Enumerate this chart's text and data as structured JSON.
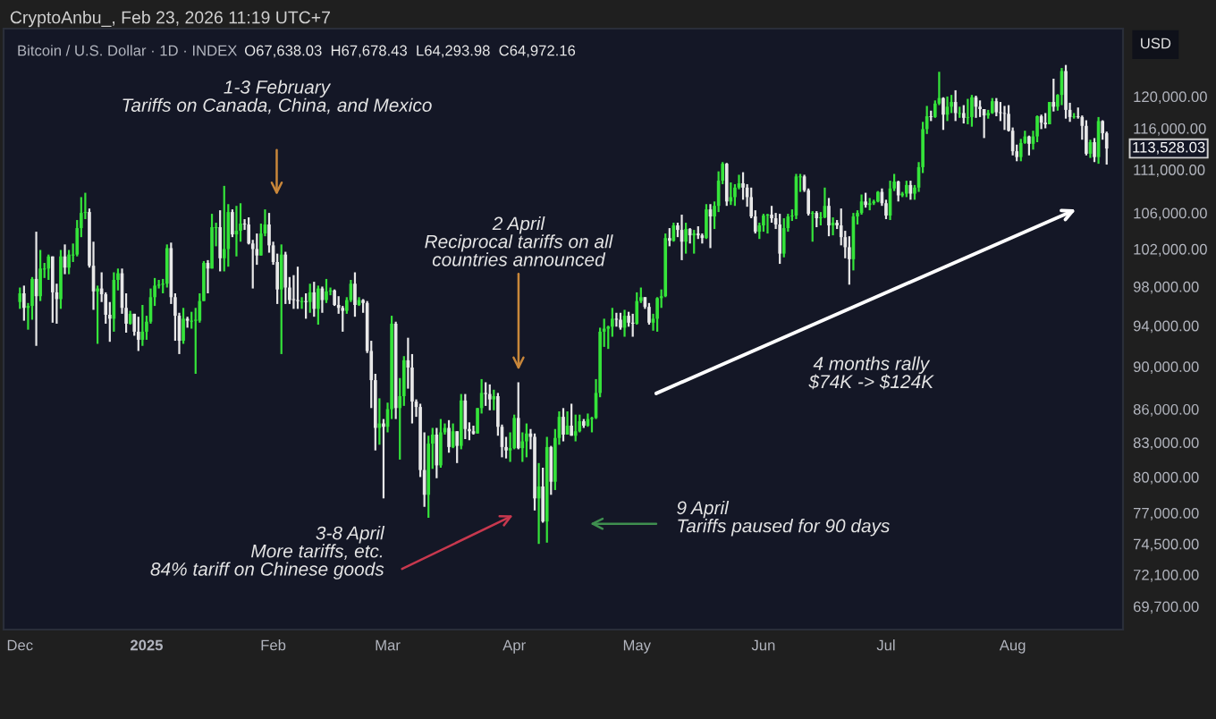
{
  "chart_data": {
    "type": "candlestick",
    "title": "Bitcoin / U.S. Dollar · 1D · INDEX",
    "subtitle": "O67,638.03  H67,678.43  L64,293.98  C64,972.16",
    "log": "y",
    "ylim": [
      68000,
      129000
    ],
    "yticks": [
      {
        "value": 69700,
        "label": "69,700.00"
      },
      {
        "value": 72100,
        "label": "72,100.00"
      },
      {
        "value": 74500,
        "label": "74,500.00"
      },
      {
        "value": 77000,
        "label": "77,000.00"
      },
      {
        "value": 80000,
        "label": "80,000.00"
      },
      {
        "value": 83000,
        "label": "83,000.00"
      },
      {
        "value": 86000,
        "label": "86,000.00"
      },
      {
        "value": 90000,
        "label": "90,000.00"
      },
      {
        "value": 94000,
        "label": "94,000.00"
      },
      {
        "value": 98000,
        "label": "98,000.00"
      },
      {
        "value": 102000,
        "label": "102,000.00"
      },
      {
        "value": 106000,
        "label": "106,000.00"
      },
      {
        "value": 111000,
        "label": "111,000.00"
      },
      {
        "value": 116000,
        "label": "116,000.00"
      },
      {
        "value": 120000,
        "label": "120,000.00"
      }
    ],
    "xlim": [
      "2024-11-27",
      "2025-08-28"
    ],
    "xticks": [
      {
        "value": "2024-12-01",
        "label": "Dec"
      },
      {
        "value": "2025-01-01",
        "label": "2025"
      },
      {
        "value": "2025-02-01",
        "label": "Feb"
      },
      {
        "value": "2025-03-01",
        "label": "Mar"
      },
      {
        "value": "2025-04-01",
        "label": "Apr"
      },
      {
        "value": "2025-05-01",
        "label": "May"
      },
      {
        "value": "2025-06-01",
        "label": "Jun"
      },
      {
        "value": "2025-07-01",
        "label": "Jul"
      },
      {
        "value": "2025-08-01",
        "label": "Aug"
      }
    ],
    "grid": false,
    "annotations": [
      "1-3 February\nTariffs on Canada, China, and Mexico",
      "2 April\nReciprocal tariffs on all\ncountries announced",
      "3-8 April\nMore tariffs, etc.\n84% tariff on Chinese goods",
      "9 April\nTariffs paused for 90 days",
      "4 months rally\n$74K -> $124K",
      "113,528.03",
      "USD",
      "CryptoAnbu_, Feb 23, 2026 11:19 UTC+7"
    ],
    "x": [
      "2024-12-01",
      "2024-12-02",
      "2024-12-03",
      "2024-12-04",
      "2024-12-05",
      "2024-12-06",
      "2024-12-07",
      "2024-12-08",
      "2024-12-09",
      "2024-12-10",
      "2024-12-11",
      "2024-12-12",
      "2024-12-13",
      "2024-12-14",
      "2024-12-15",
      "2024-12-16",
      "2024-12-17",
      "2024-12-18",
      "2024-12-19",
      "2024-12-20",
      "2024-12-21",
      "2024-12-22",
      "2024-12-23",
      "2024-12-24",
      "2024-12-25",
      "2024-12-26",
      "2024-12-27",
      "2024-12-28",
      "2024-12-29",
      "2024-12-30",
      "2024-12-31",
      "2025-01-01",
      "2025-01-02",
      "2025-01-03",
      "2025-01-04",
      "2025-01-05",
      "2025-01-06",
      "2025-01-07",
      "2025-01-08",
      "2025-01-09",
      "2025-01-10",
      "2025-01-11",
      "2025-01-12",
      "2025-01-13",
      "2025-01-14",
      "2025-01-15",
      "2025-01-16",
      "2025-01-17",
      "2025-01-18",
      "2025-01-19",
      "2025-01-20",
      "2025-01-21",
      "2025-01-22",
      "2025-01-23",
      "2025-01-24",
      "2025-01-25",
      "2025-01-26",
      "2025-01-27",
      "2025-01-28",
      "2025-01-29",
      "2025-01-30",
      "2025-01-31",
      "2025-02-01",
      "2025-02-02",
      "2025-02-03",
      "2025-02-04",
      "2025-02-05",
      "2025-02-06",
      "2025-02-07",
      "2025-02-08",
      "2025-02-09",
      "2025-02-10",
      "2025-02-11",
      "2025-02-12",
      "2025-02-13",
      "2025-02-14",
      "2025-02-15",
      "2025-02-16",
      "2025-02-17",
      "2025-02-18",
      "2025-02-19",
      "2025-02-20",
      "2025-02-21",
      "2025-02-22",
      "2025-02-23",
      "2025-02-24",
      "2025-02-25",
      "2025-02-26",
      "2025-02-27",
      "2025-02-28",
      "2025-03-01",
      "2025-03-02",
      "2025-03-03",
      "2025-03-04",
      "2025-03-05",
      "2025-03-06",
      "2025-03-07",
      "2025-03-08",
      "2025-03-09",
      "2025-03-10",
      "2025-03-11",
      "2025-03-12",
      "2025-03-13",
      "2025-03-14",
      "2025-03-15",
      "2025-03-16",
      "2025-03-17",
      "2025-03-18",
      "2025-03-19",
      "2025-03-20",
      "2025-03-21",
      "2025-03-22",
      "2025-03-23",
      "2025-03-24",
      "2025-03-25",
      "2025-03-26",
      "2025-03-27",
      "2025-03-28",
      "2025-03-29",
      "2025-03-30",
      "2025-03-31",
      "2025-04-01",
      "2025-04-02",
      "2025-04-03",
      "2025-04-04",
      "2025-04-05",
      "2025-04-06",
      "2025-04-07",
      "2025-04-08",
      "2025-04-09",
      "2025-04-10",
      "2025-04-11",
      "2025-04-12",
      "2025-04-13",
      "2025-04-14",
      "2025-04-15",
      "2025-04-16",
      "2025-04-17",
      "2025-04-18",
      "2025-04-19",
      "2025-04-20",
      "2025-04-21",
      "2025-04-22",
      "2025-04-23",
      "2025-04-24",
      "2025-04-25",
      "2025-04-26",
      "2025-04-27",
      "2025-04-28",
      "2025-04-29",
      "2025-04-30",
      "2025-05-01",
      "2025-05-02",
      "2025-05-03",
      "2025-05-04",
      "2025-05-05",
      "2025-05-06",
      "2025-05-07",
      "2025-05-08",
      "2025-05-09",
      "2025-05-10",
      "2025-05-11",
      "2025-05-12",
      "2025-05-13",
      "2025-05-14",
      "2025-05-15",
      "2025-05-16",
      "2025-05-17",
      "2025-05-18",
      "2025-05-19",
      "2025-05-20",
      "2025-05-21",
      "2025-05-22",
      "2025-05-23",
      "2025-05-24",
      "2025-05-25",
      "2025-05-26",
      "2025-05-27",
      "2025-05-28",
      "2025-05-29",
      "2025-05-30",
      "2025-05-31",
      "2025-06-01",
      "2025-06-02",
      "2025-06-03",
      "2025-06-04",
      "2025-06-05",
      "2025-06-06",
      "2025-06-07",
      "2025-06-08",
      "2025-06-09",
      "2025-06-10",
      "2025-06-11",
      "2025-06-12",
      "2025-06-13",
      "2025-06-14",
      "2025-06-15",
      "2025-06-16",
      "2025-06-17",
      "2025-06-18",
      "2025-06-19",
      "2025-06-20",
      "2025-06-21",
      "2025-06-22",
      "2025-06-23",
      "2025-06-24",
      "2025-06-25",
      "2025-06-26",
      "2025-06-27",
      "2025-06-28",
      "2025-06-29",
      "2025-06-30",
      "2025-07-01",
      "2025-07-02",
      "2025-07-03",
      "2025-07-04",
      "2025-07-05",
      "2025-07-06",
      "2025-07-07",
      "2025-07-08",
      "2025-07-09",
      "2025-07-10",
      "2025-07-11",
      "2025-07-12",
      "2025-07-13",
      "2025-07-14",
      "2025-07-15",
      "2025-07-16",
      "2025-07-17",
      "2025-07-18",
      "2025-07-19",
      "2025-07-20",
      "2025-07-21",
      "2025-07-22",
      "2025-07-23",
      "2025-07-24",
      "2025-07-25",
      "2025-07-26",
      "2025-07-27",
      "2025-07-28",
      "2025-07-29",
      "2025-07-30",
      "2025-07-31",
      "2025-08-01",
      "2025-08-02",
      "2025-08-03",
      "2025-08-04",
      "2025-08-05",
      "2025-08-06",
      "2025-08-07",
      "2025-08-08",
      "2025-08-09",
      "2025-08-10",
      "2025-08-11",
      "2025-08-12",
      "2025-08-13",
      "2025-08-14",
      "2025-08-15",
      "2025-08-16",
      "2025-08-17",
      "2025-08-18",
      "2025-08-19",
      "2025-08-20",
      "2025-08-21",
      "2025-08-22",
      "2025-08-23",
      "2025-08-24"
    ],
    "ohlc": [
      [
        96400,
        97900,
        95700,
        97300
      ],
      [
        97300,
        98100,
        94500,
        95800
      ],
      [
        95800,
        96300,
        93600,
        96000
      ],
      [
        96000,
        99000,
        94600,
        98800
      ],
      [
        98800,
        103900,
        92000,
        97000
      ],
      [
        97000,
        101900,
        96500,
        99900
      ],
      [
        99800,
        100500,
        98900,
        99900
      ],
      [
        99900,
        101400,
        98700,
        101200
      ],
      [
        101200,
        101200,
        94300,
        97400
      ],
      [
        97400,
        98300,
        94200,
        96700
      ],
      [
        96700,
        101900,
        95700,
        101200
      ],
      [
        101200,
        102500,
        99300,
        100000
      ],
      [
        100000,
        101900,
        99300,
        101400
      ],
      [
        101300,
        102600,
        100600,
        101400
      ],
      [
        101400,
        105200,
        101200,
        104300
      ],
      [
        104300,
        107800,
        103300,
        106000
      ],
      [
        106000,
        108300,
        105300,
        106100
      ],
      [
        106100,
        106500,
        100000,
        100200
      ],
      [
        100200,
        102800,
        95600,
        97500
      ],
      [
        97500,
        98100,
        92200,
        97800
      ],
      [
        97800,
        99500,
        96400,
        97200
      ],
      [
        97200,
        97400,
        94200,
        95100
      ],
      [
        95100,
        96400,
        92400,
        94700
      ],
      [
        94700,
        99500,
        93400,
        98700
      ],
      [
        98700,
        99900,
        97600,
        99400
      ],
      [
        99400,
        99900,
        95200,
        95800
      ],
      [
        95800,
        97300,
        93300,
        94200
      ],
      [
        94200,
        95500,
        94100,
        95200
      ],
      [
        95200,
        95200,
        93000,
        93400
      ],
      [
        93400,
        94900,
        91500,
        92600
      ],
      [
        92600,
        96100,
        92000,
        93400
      ],
      [
        93400,
        95000,
        92600,
        94400
      ],
      [
        94400,
        97800,
        94200,
        96900
      ],
      [
        96900,
        98900,
        96000,
        98100
      ],
      [
        98100,
        98700,
        97800,
        98200
      ],
      [
        98200,
        98800,
        97300,
        98300
      ],
      [
        98300,
        102500,
        97900,
        102100
      ],
      [
        102100,
        102700,
        96200,
        96900
      ],
      [
        96900,
        97300,
        92500,
        95000
      ],
      [
        95000,
        95300,
        91200,
        92500
      ],
      [
        92500,
        95800,
        92200,
        94700
      ],
      [
        94700,
        94900,
        93800,
        94500
      ],
      [
        94400,
        95400,
        93700,
        94500
      ],
      [
        94500,
        95800,
        89300,
        94600
      ],
      [
        94500,
        97300,
        94300,
        96500
      ],
      [
        96500,
        100700,
        96500,
        100500
      ],
      [
        100500,
        100800,
        97300,
        99900
      ],
      [
        99900,
        105900,
        99900,
        104400
      ],
      [
        104300,
        104900,
        102300,
        104400
      ],
      [
        104400,
        106300,
        99600,
        101000
      ],
      [
        101000,
        109100,
        99600,
        102000
      ],
      [
        102000,
        107000,
        100100,
        106100
      ],
      [
        106100,
        106400,
        103300,
        103600
      ],
      [
        103600,
        106800,
        101200,
        104000
      ],
      [
        104000,
        107100,
        102800,
        104800
      ],
      [
        104800,
        105300,
        104100,
        104700
      ],
      [
        104700,
        105500,
        102500,
        102600
      ],
      [
        102600,
        103000,
        97800,
        102000
      ],
      [
        102000,
        103700,
        100300,
        101300
      ],
      [
        101300,
        104800,
        101300,
        103700
      ],
      [
        103700,
        106400,
        103400,
        104700
      ],
      [
        104700,
        106000,
        101600,
        102400
      ],
      [
        102400,
        102800,
        100300,
        100600
      ],
      [
        100600,
        101500,
        96200,
        97700
      ],
      [
        97700,
        102500,
        91200,
        101400
      ],
      [
        101400,
        101700,
        96200,
        97900
      ],
      [
        97900,
        99000,
        96200,
        96600
      ],
      [
        96700,
        99200,
        95700,
        96600
      ],
      [
        96600,
        100100,
        95700,
        96500
      ],
      [
        96400,
        96900,
        95700,
        96500
      ],
      [
        96500,
        97300,
        94700,
        96400
      ],
      [
        96400,
        98300,
        95300,
        97400
      ],
      [
        97400,
        98500,
        94900,
        95700
      ],
      [
        95700,
        98100,
        94100,
        97800
      ],
      [
        97800,
        98000,
        95300,
        96600
      ],
      [
        96600,
        98800,
        96300,
        97500
      ],
      [
        97500,
        97900,
        97100,
        97600
      ],
      [
        97600,
        97700,
        96000,
        96100
      ],
      [
        96100,
        97000,
        95200,
        95800
      ],
      [
        95800,
        96000,
        93400,
        95500
      ],
      [
        95500,
        96900,
        95200,
        96600
      ],
      [
        96600,
        98700,
        96400,
        98300
      ],
      [
        98300,
        99500,
        94900,
        96100
      ],
      [
        96100,
        96900,
        96000,
        96600
      ],
      [
        96600,
        96700,
        95300,
        96300
      ],
      [
        96300,
        96500,
        91300,
        91500
      ],
      [
        91500,
        92500,
        86100,
        88700
      ],
      [
        88700,
        89300,
        82300,
        84300
      ],
      [
        84300,
        87000,
        82800,
        84700
      ],
      [
        84700,
        85100,
        78200,
        84400
      ],
      [
        84400,
        86600,
        83900,
        86000
      ],
      [
        86000,
        95000,
        85100,
        94200
      ],
      [
        94200,
        94400,
        85100,
        86100
      ],
      [
        86100,
        88900,
        81500,
        87200
      ],
      [
        87200,
        91000,
        86300,
        90600
      ],
      [
        90600,
        92800,
        87900,
        89900
      ],
      [
        89900,
        91200,
        84700,
        86700
      ],
      [
        86700,
        86900,
        85300,
        86200
      ],
      [
        86200,
        86500,
        80000,
        80600
      ],
      [
        80600,
        83900,
        77500,
        78500
      ],
      [
        78500,
        83600,
        76600,
        82900
      ],
      [
        82900,
        84300,
        80700,
        83700
      ],
      [
        83700,
        84300,
        79900,
        81000
      ],
      [
        81000,
        85100,
        80800,
        83900
      ],
      [
        83900,
        84700,
        83700,
        84300
      ],
      [
        84300,
        85000,
        82100,
        82600
      ],
      [
        82600,
        84700,
        82500,
        84000
      ],
      [
        84000,
        84000,
        81200,
        82700
      ],
      [
        82700,
        87400,
        82400,
        86800
      ],
      [
        86800,
        87400,
        83300,
        84200
      ],
      [
        84200,
        84800,
        83200,
        84000
      ],
      [
        84000,
        84500,
        83700,
        83800
      ],
      [
        83800,
        86100,
        83800,
        86100
      ],
      [
        86100,
        88800,
        85600,
        87500
      ],
      [
        87500,
        88500,
        86300,
        87400
      ],
      [
        87400,
        88300,
        85900,
        86900
      ],
      [
        86900,
        87800,
        85900,
        87200
      ],
      [
        87200,
        87500,
        83600,
        84400
      ],
      [
        84400,
        84600,
        81700,
        82600
      ],
      [
        82600,
        83500,
        81600,
        82300
      ],
      [
        82300,
        83900,
        81300,
        82500
      ],
      [
        82500,
        85500,
        82400,
        85200
      ],
      [
        85200,
        88500,
        82400,
        82500
      ],
      [
        82500,
        83900,
        81300,
        83100
      ],
      [
        83100,
        84700,
        81700,
        83800
      ],
      [
        83800,
        84200,
        82400,
        83500
      ],
      [
        83500,
        83800,
        77200,
        78200
      ],
      [
        78200,
        81200,
        74500,
        79200
      ],
      [
        79200,
        80800,
        76200,
        76300
      ],
      [
        76300,
        83500,
        74600,
        82600
      ],
      [
        82600,
        82700,
        78500,
        79600
      ],
      [
        79600,
        84200,
        78900,
        83400
      ],
      [
        83400,
        85800,
        82800,
        85300
      ],
      [
        85300,
        86100,
        83100,
        83700
      ],
      [
        83700,
        85800,
        83700,
        84500
      ],
      [
        84500,
        86500,
        83600,
        83600
      ],
      [
        83600,
        85500,
        83100,
        84000
      ],
      [
        84000,
        85500,
        83900,
        84900
      ],
      [
        84900,
        85100,
        84300,
        84500
      ],
      [
        84500,
        85600,
        84400,
        85100
      ],
      [
        85100,
        85300,
        83900,
        85200
      ],
      [
        85200,
        88800,
        85100,
        87500
      ],
      [
        87500,
        93800,
        87100,
        93400
      ],
      [
        93400,
        94700,
        91900,
        93700
      ],
      [
        93700,
        94000,
        91700,
        93900
      ],
      [
        93900,
        95800,
        92900,
        94700
      ],
      [
        94700,
        95300,
        93900,
        94600
      ],
      [
        94600,
        95300,
        93600,
        93800
      ],
      [
        93800,
        95600,
        92900,
        95000
      ],
      [
        95000,
        95400,
        93900,
        94300
      ],
      [
        94300,
        95200,
        92900,
        94200
      ],
      [
        94200,
        97400,
        94100,
        96500
      ],
      [
        96500,
        97900,
        96300,
        96900
      ],
      [
        96900,
        96900,
        95700,
        95900
      ],
      [
        95900,
        96300,
        94100,
        94300
      ],
      [
        94300,
        95200,
        93500,
        94700
      ],
      [
        94700,
        96900,
        93400,
        96800
      ],
      [
        96800,
        97700,
        95800,
        97000
      ],
      [
        97000,
        103700,
        96900,
        103200
      ],
      [
        103200,
        104300,
        102300,
        102900
      ],
      [
        102900,
        104900,
        102800,
        104600
      ],
      [
        104600,
        104900,
        103300,
        104100
      ],
      [
        104100,
        105800,
        100800,
        102800
      ],
      [
        102800,
        104900,
        101500,
        104200
      ],
      [
        104200,
        104300,
        102600,
        103500
      ],
      [
        103500,
        104100,
        101500,
        103700
      ],
      [
        103700,
        104500,
        103100,
        103500
      ],
      [
        103500,
        103700,
        102600,
        103200
      ],
      [
        103200,
        107000,
        103100,
        106400
      ],
      [
        106400,
        107000,
        102100,
        105600
      ],
      [
        105600,
        107300,
        104200,
        106800
      ],
      [
        106800,
        110800,
        106100,
        109700
      ],
      [
        109700,
        111900,
        109300,
        111700
      ],
      [
        111700,
        111800,
        106800,
        107300
      ],
      [
        107300,
        109500,
        106900,
        107800
      ],
      [
        107800,
        109300,
        106800,
        108900
      ],
      [
        108900,
        110400,
        108700,
        109400
      ],
      [
        109400,
        110700,
        107500,
        108900
      ],
      [
        108900,
        109300,
        106700,
        107800
      ],
      [
        107800,
        108900,
        105400,
        105600
      ],
      [
        105600,
        106300,
        103700,
        103900
      ],
      [
        103900,
        104900,
        103100,
        104600
      ],
      [
        104600,
        105900,
        103900,
        105700
      ],
      [
        105700,
        105900,
        103700,
        105800
      ],
      [
        105800,
        106800,
        104900,
        105400
      ],
      [
        105400,
        106000,
        104200,
        104700
      ],
      [
        104700,
        105900,
        100400,
        101500
      ],
      [
        101500,
        105400,
        101100,
        104300
      ],
      [
        104300,
        105900,
        103900,
        105600
      ],
      [
        105600,
        106400,
        105100,
        105700
      ],
      [
        105700,
        110500,
        105300,
        110200
      ],
      [
        110100,
        110500,
        108400,
        110200
      ],
      [
        110200,
        110400,
        108400,
        108600
      ],
      [
        108600,
        108800,
        105700,
        105900
      ],
      [
        105900,
        106200,
        102800,
        106000
      ],
      [
        106000,
        106200,
        104400,
        105400
      ],
      [
        105400,
        106100,
        104600,
        105500
      ],
      [
        105500,
        108900,
        105400,
        106800
      ],
      [
        106800,
        107700,
        103400,
        104600
      ],
      [
        104600,
        105500,
        103500,
        104900
      ],
      [
        104900,
        105200,
        104200,
        104600
      ],
      [
        104600,
        106500,
        102400,
        103300
      ],
      [
        103300,
        104000,
        101000,
        102200
      ],
      [
        102200,
        103400,
        98200,
        100900
      ],
      [
        100900,
        106000,
        99700,
        105600
      ],
      [
        105600,
        106300,
        104700,
        106000
      ],
      [
        106000,
        108100,
        105800,
        107300
      ],
      [
        107300,
        108300,
        106600,
        106900
      ],
      [
        106900,
        107700,
        106300,
        107100
      ],
      [
        107100,
        107500,
        106900,
        107300
      ],
      [
        107300,
        108500,
        107200,
        108400
      ],
      [
        108400,
        108800,
        106800,
        107100
      ],
      [
        107100,
        107500,
        105300,
        105700
      ],
      [
        105700,
        109700,
        105200,
        108800
      ],
      [
        108800,
        110500,
        108500,
        109600
      ],
      [
        109600,
        109700,
        107300,
        108000
      ],
      [
        108000,
        108400,
        107800,
        108200
      ],
      [
        108200,
        109700,
        107800,
        109200
      ],
      [
        109200,
        109700,
        107500,
        108200
      ],
      [
        108200,
        109200,
        107500,
        108900
      ],
      [
        108900,
        111900,
        108400,
        111300
      ],
      [
        111300,
        116800,
        110600,
        115900
      ],
      [
        115900,
        118800,
        115300,
        117500
      ],
      [
        117500,
        118200,
        116900,
        117400
      ],
      [
        117400,
        119500,
        117300,
        119100
      ],
      [
        119100,
        123200,
        118900,
        119800
      ],
      [
        119800,
        119900,
        115800,
        117700
      ],
      [
        117700,
        120000,
        116900,
        118700
      ],
      [
        118700,
        120200,
        117900,
        119300
      ],
      [
        119300,
        120800,
        116900,
        117900
      ],
      [
        117800,
        118700,
        117300,
        117900
      ],
      [
        117900,
        118900,
        116600,
        117300
      ],
      [
        117300,
        119700,
        116500,
        117400
      ],
      [
        117400,
        120200,
        116200,
        119900
      ],
      [
        119900,
        120100,
        117300,
        118700
      ],
      [
        118700,
        119500,
        117400,
        118400
      ],
      [
        118400,
        118400,
        114800,
        117600
      ],
      [
        117600,
        118300,
        117200,
        117900
      ],
      [
        117900,
        119800,
        117800,
        119400
      ],
      [
        119400,
        119800,
        117500,
        118000
      ],
      [
        118000,
        119300,
        116900,
        117900
      ],
      [
        117900,
        118800,
        115800,
        117800
      ],
      [
        117800,
        118900,
        115600,
        115700
      ],
      [
        115700,
        116100,
        112700,
        113200
      ],
      [
        113200,
        114000,
        112000,
        112500
      ],
      [
        112500,
        114700,
        112000,
        114200
      ],
      [
        114200,
        115700,
        114100,
        115000
      ],
      [
        115000,
        115100,
        112700,
        114100
      ],
      [
        114100,
        115700,
        113400,
        115000
      ],
      [
        115000,
        117600,
        114300,
        117500
      ],
      [
        117500,
        117700,
        115900,
        116700
      ],
      [
        116700,
        117900,
        116000,
        116500
      ],
      [
        116500,
        119300,
        116500,
        119300
      ],
      [
        119300,
        122300,
        118100,
        118700
      ],
      [
        118700,
        120300,
        118200,
        120200
      ],
      [
        120200,
        123700,
        118900,
        123300
      ],
      [
        123300,
        124100,
        117200,
        118300
      ],
      [
        118300,
        119200,
        116800,
        117400
      ],
      [
        117400,
        117900,
        117200,
        117500
      ],
      [
        117500,
        118600,
        117200,
        117400
      ],
      [
        117400,
        117600,
        114600,
        116300
      ],
      [
        116300,
        117000,
        112700,
        112900
      ],
      [
        112900,
        114600,
        112400,
        114300
      ],
      [
        114300,
        114800,
        111900,
        112500
      ],
      [
        112500,
        117400,
        111700,
        116900
      ],
      [
        116900,
        117000,
        114600,
        115400
      ],
      [
        115400,
        115600,
        111600,
        113528.03
      ]
    ]
  }
}
